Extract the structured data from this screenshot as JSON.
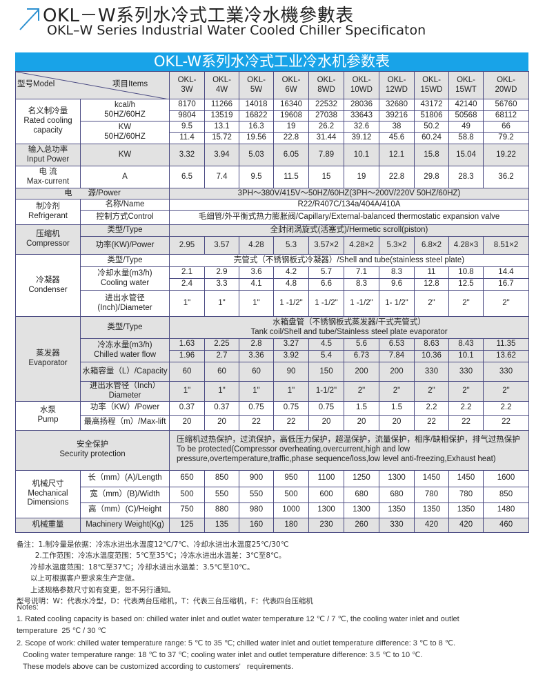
{
  "heading": {
    "title": "OKL－W系列水冷式工業冷水機參數表",
    "subtitle": "OKL–W Series Industrial Water Cooled Chiller Specificaton",
    "icon": "arrow-up-right-icon",
    "accent": "#2a8fd0"
  },
  "table": {
    "title": "OKL-W系列水冷式工业冷水机参数表",
    "title_bg": "#18a3e8",
    "model_label": "型号Model",
    "items_label": "项目Items",
    "models": [
      "OKL-\n3W",
      "OKL-\n4W",
      "OKL-\n5W",
      "OKL-\n6W",
      "OKL-\n8WD",
      "OKL-\n10WD",
      "OKL-\n12WD",
      "OKL-\n15WD",
      "OKL-\n15WT",
      "OKL-\n20WD"
    ],
    "sections": [
      {
        "group": "名义制冷量\nRated cooling\ncapacity",
        "shaded": false,
        "rows": [
          {
            "item": "kcal/h\n50HZ/60HZ",
            "item_rows": 2,
            "values": [
              "8170",
              "11266",
              "14018",
              "16340",
              "22532",
              "28036",
              "32680",
              "43172",
              "42140",
              "56760"
            ]
          },
          {
            "values": [
              "9804",
              "13519",
              "16822",
              "19608",
              "27038",
              "33643",
              "39216",
              "51806",
              "50568",
              "68112"
            ]
          },
          {
            "item": "KW\n50HZ/60HZ",
            "item_rows": 2,
            "values": [
              "9.5",
              "13.1",
              "16.3",
              "19",
              "26.2",
              "32.6",
              "38",
              "50.2",
              "49",
              "66"
            ]
          },
          {
            "values": [
              "11.4",
              "15.72",
              "19.56",
              "22.8",
              "31.44",
              "39.12",
              "45.6",
              "60.24",
              "58.8",
              "79.2"
            ]
          }
        ]
      },
      {
        "group": "输入总功率\nInput Power",
        "shaded": true,
        "rows": [
          {
            "item": "KW",
            "values": [
              "3.32",
              "3.94",
              "5.03",
              "6.05",
              "7.89",
              "10.1",
              "12.1",
              "15.8",
              "15.04",
              "19.22"
            ]
          }
        ]
      },
      {
        "group": "电  流\nMax-current",
        "shaded": false,
        "rows": [
          {
            "item": "A",
            "values": [
              "6.5",
              "7.4",
              "9.5",
              "11.5",
              "15",
              "19",
              "22.8",
              "29.8",
              "28.3",
              "36.2"
            ]
          }
        ]
      },
      {
        "label": "电　　源/Power",
        "shaded": true,
        "rows": [
          {
            "span": "3PH～380V/415V～50HZ/60HZ(3PH～200V/220V   50HZ/60HZ)"
          }
        ]
      },
      {
        "group": "制冷剂\nRefrigerant",
        "shaded": false,
        "rows": [
          {
            "item": "名称/Name",
            "span": "R22/R407C/134a/404A/410A"
          },
          {
            "item": "控制方式Control",
            "span": "毛细管/外平衡式热力膨胀阀/Capillary/External-balanced thermostatic expansion valve"
          }
        ]
      },
      {
        "group": "压缩机\nCompressor",
        "shaded": true,
        "rows": [
          {
            "item": "类型/Type",
            "span": "全封闭涡旋式(活塞式)/Hermetic scroll(piston)"
          },
          {
            "item": "功率(KW)/Power",
            "values": [
              "2.95",
              "3.57",
              "4.28",
              "5.3",
              "3.57×2",
              "4.28×2",
              "5.3×2",
              "6.8×2",
              "4.28×3",
              "8.51×2"
            ]
          }
        ]
      },
      {
        "group": "冷凝器\nCondenser",
        "shaded": false,
        "rows": [
          {
            "item": "类型/Type",
            "span": "壳管式（不锈钢板式冷凝器）/Shell and tube(stainless steel plate)"
          },
          {
            "item": "冷却水量(m3/h)\nCooling water",
            "item_rows": 2,
            "values": [
              "2.1",
              "2.9",
              "3.6",
              "4.2",
              "5.7",
              "7.1",
              "8.3",
              "11",
              "10.8",
              "14.4"
            ]
          },
          {
            "values": [
              "2.4",
              "3.3",
              "4.1",
              "4.8",
              "6.6",
              "8.3",
              "9.6",
              "12.8",
              "12.5",
              "16.7"
            ]
          },
          {
            "item": "进出水管径\n(Inch)/Diameter",
            "values": [
              "1\"",
              "1\"",
              "1\"",
              "1 -1/2\"",
              "1 -1/2\"",
              "1 -1/2\"",
              "1- 1/2\"",
              "2\"",
              "2\"",
              "2\""
            ]
          }
        ]
      },
      {
        "group": "蒸发器\nEvaporator",
        "shaded": true,
        "rows": [
          {
            "item": "类型/Type",
            "span": "水箱盘管（不锈钢板式蒸发器/干式壳管式）\nTank coil/Shell and tube/Stainless steel plate evaporator"
          },
          {
            "item": "冷冻水量(m3/h)\nChilled water flow",
            "item_rows": 2,
            "values": [
              "1.63",
              "2.25",
              "2.8",
              "3.27",
              "4.5",
              "5.6",
              "6.53",
              "8.63",
              "8.43",
              "11.35"
            ]
          },
          {
            "values": [
              "1.96",
              "2.7",
              "3.36",
              "3.92",
              "5.4",
              "6.73",
              "7.84",
              "10.36",
              "10.1",
              "13.62"
            ]
          },
          {
            "item": "水箱容量（L）/Capacity",
            "values": [
              "60",
              "60",
              "60",
              "90",
              "150",
              "200",
              "200",
              "330",
              "330",
              "330"
            ]
          },
          {
            "item": "进出水管径（Inch）\nDiameter",
            "values": [
              "1\"",
              "1\"",
              "1\"",
              "1\"",
              "1-1/2\"",
              "2\"",
              "2\"",
              "2\"",
              "2\"",
              "2\""
            ]
          }
        ]
      },
      {
        "group": "水泵\nPump",
        "shaded": false,
        "rows": [
          {
            "item": "功率（KW）/Power",
            "values": [
              "0.37",
              "0.37",
              "0.75",
              "0.75",
              "0.75",
              "1.5",
              "1.5",
              "2.2",
              "2.2",
              "2.2"
            ]
          },
          {
            "item": "最高扬程（m）/Max-lift",
            "values": [
              "20",
              "20",
              "22",
              "22",
              "20",
              "20",
              "20",
              "22",
              "22",
              "22"
            ]
          }
        ]
      },
      {
        "label": "安全保护\nSecurity protection",
        "shaded": true,
        "rows": [
          {
            "span": "压缩机过热保护，过流保护，高低压力保护，超温保护，流量保护，相序/缺相保护，排气过热保护\nTo be protected(Compressor overheating,overcurrent,high and low\npressure,overtemperature,traffic,phase sequence/loss,low level anti-freezing,Exhaust heat)",
            "align": "left"
          }
        ]
      },
      {
        "group": "机械尺寸\nMechanical\nDimensions",
        "shaded": false,
        "rows": [
          {
            "item": "长（mm）(A)/Length",
            "values": [
              "650",
              "850",
              "900",
              "950",
              "1100",
              "1250",
              "1300",
              "1450",
              "1450",
              "1600"
            ]
          },
          {
            "item": "宽（mm）(B)/Width",
            "values": [
              "500",
              "550",
              "550",
              "500",
              "600",
              "680",
              "680",
              "780",
              "780",
              "850"
            ]
          },
          {
            "item": "高（mm）(C)/Height",
            "values": [
              "750",
              "880",
              "980",
              "1000",
              "1300",
              "1300",
              "1350",
              "1350",
              "1350",
              "1480"
            ]
          }
        ]
      },
      {
        "group": "机械重量",
        "shaded": true,
        "rows": [
          {
            "item": "Machinery Weight(Kg)",
            "values": [
              "125",
              "135",
              "160",
              "180",
              "230",
              "260",
              "330",
              "420",
              "420",
              "460"
            ]
          }
        ]
      }
    ]
  },
  "notes_cn": [
    "备注：1.制冷量是依据：冷冻水进出水温度12℃/7℃、冷却水进出水温度25℃/30℃",
    "        2.工作范围：冷冻水温度范围：5℃至35℃；冷冻水进出水温差：3℃至8℃。",
    "      冷却水温度范围：18℃至37℃；冷却水进出水温差：3.5℃至10℃。",
    "      以上可根据客户要求来生产定做。",
    "      上述规格参数尺寸如有变更，恕不另行通知。",
    "型号说明：W：代表水冷型，D：代表两台压缩机，T：代表三台压缩机，F：代表四台压缩机"
  ],
  "notes_en": [
    "Notes:",
    "1. Rated cooling capacity is based on: chilled water inlet and outlet water temperature 12 ℃ / 7 ℃, the cooling water inlet and outlet",
    "temperature  25 ℃ / 30 ℃",
    "2. Scope of work: chilled water temperature range: 5 ℃ to 35 ℃; chilled water inlet and outlet temperature difference: 3 ℃ to 8 ℃.",
    "   Cooling water temperature range: 18 ℃ to 37 ℃; cooling water inlet and outlet temperature difference: 3.5 ℃ to 10 ℃.",
    "   These models above can be customized according to customers'   requirements."
  ]
}
